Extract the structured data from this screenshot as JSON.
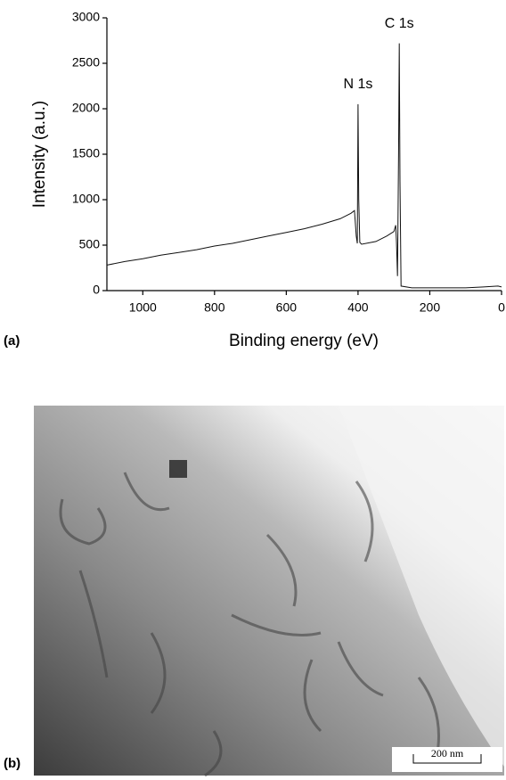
{
  "chart_data": {
    "type": "line",
    "panel_label": "(a)",
    "x_label": "Binding energy (eV)",
    "y_label": "Intensity (a.u.)",
    "x": [
      1100,
      1050,
      1000,
      950,
      900,
      850,
      800,
      750,
      700,
      650,
      600,
      550,
      500,
      450,
      420,
      410,
      405,
      402,
      400,
      398,
      395,
      390,
      350,
      320,
      300,
      295,
      293,
      290,
      287,
      285,
      283,
      280,
      250,
      200,
      100,
      50,
      10,
      0
    ],
    "series": [
      {
        "color": "#111111",
        "values": [
          280,
          320,
          350,
          390,
          420,
          450,
          490,
          520,
          560,
          600,
          640,
          680,
          730,
          790,
          850,
          880,
          600,
          520,
          2050,
          1000,
          530,
          510,
          540,
          600,
          650,
          720,
          550,
          160,
          1500,
          2720,
          1200,
          50,
          30,
          30,
          30,
          40,
          50,
          40
        ]
      }
    ],
    "annotations": [
      {
        "text": "N 1s",
        "x": 400,
        "y": 2050
      },
      {
        "text": "C 1s",
        "x": 285,
        "y": 2720
      }
    ],
    "xlim": [
      1100,
      0
    ],
    "ylim": [
      0,
      3000
    ],
    "xticks": [
      1000,
      800,
      600,
      400,
      200,
      0
    ],
    "yticks": [
      0,
      500,
      1000,
      1500,
      2000,
      2500,
      3000
    ]
  },
  "image": {
    "panel_label": "(b)",
    "scale_bar": "200 nm"
  }
}
